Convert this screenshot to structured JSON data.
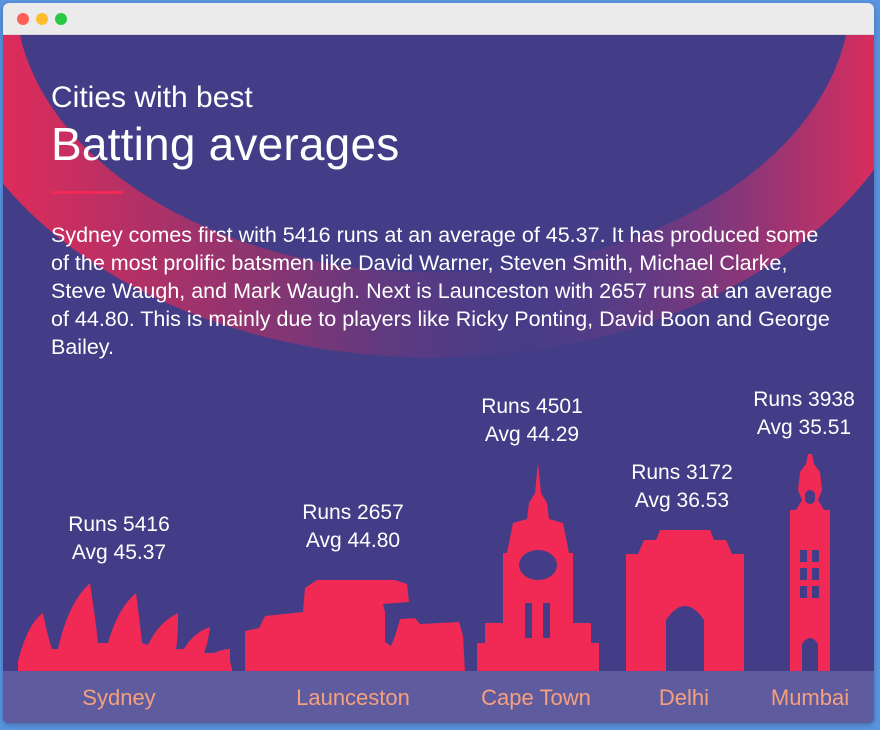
{
  "window": {
    "controls": [
      "close",
      "minimize",
      "maximize"
    ]
  },
  "header": {
    "pre_title": "Cities with best",
    "title": "Batting averages",
    "accent_color": "#f02a55"
  },
  "description": "Sydney comes first with 5416 runs at an average of 45.37. It has produced some of the most prolific batsmen like David Warner, Steven Smith, Michael Clarke, Steve Waugh, and Mark Waugh. Next is Launceston with 2657 runs at an average of 44.80. This is mainly due to players like Ricky Ponting, David Boon and George Bailey.",
  "colors": {
    "background": "#433c86",
    "skyline": "#f02a55",
    "footer": "#5f5b9f",
    "city_label": "#f7a07e",
    "text": "#ffffff"
  },
  "chart_data": {
    "type": "bar",
    "categories": [
      "Sydney",
      "Launceston",
      "Cape Town",
      "Delhi",
      "Mumbai"
    ],
    "series": [
      {
        "name": "Runs",
        "values": [
          5416,
          2657,
          4501,
          3172,
          3938
        ]
      },
      {
        "name": "Avg",
        "values": [
          45.37,
          44.8,
          44.29,
          36.53,
          35.51
        ]
      }
    ],
    "labels": {
      "runs": [
        "Runs 5416",
        "Runs 2657",
        "Runs 4501",
        "Runs 3172",
        "Runs 3938"
      ],
      "avg": [
        "Avg 45.37",
        "Avg 44.80",
        "Avg 44.29",
        "Avg 36.53",
        "Avg 35.51"
      ]
    },
    "landmarks": [
      "sydney-opera-house-icon",
      "launceston-landmark-icon",
      "cape-town-clock-tower-icon",
      "india-gate-icon",
      "mumbai-tower-icon"
    ]
  }
}
